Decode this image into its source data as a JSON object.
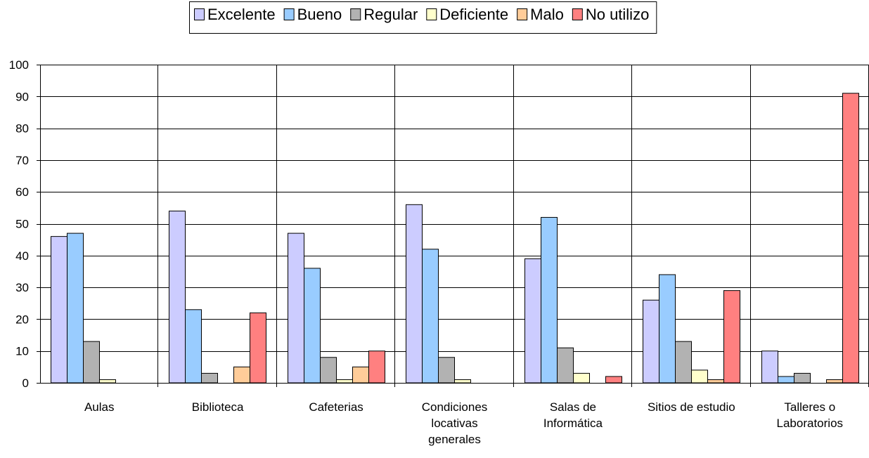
{
  "chart_data": {
    "type": "bar",
    "title": "",
    "xlabel": "",
    "ylabel": "",
    "ylim": [
      0,
      100
    ],
    "yticks": [
      0,
      10,
      20,
      30,
      40,
      50,
      60,
      70,
      80,
      90,
      100
    ],
    "grid": true,
    "legend_position": "top-center",
    "categories": [
      [
        "Aulas"
      ],
      [
        "Biblioteca"
      ],
      [
        "Cafeterias"
      ],
      [
        "Condiciones",
        "locativas",
        "generales"
      ],
      [
        "Salas de",
        "Informática"
      ],
      [
        "Sitios de estudio"
      ],
      [
        "Talleres o",
        "Laboratorios"
      ]
    ],
    "series": [
      {
        "name": "Excelente",
        "color": "#CCCCFF",
        "values": [
          46,
          54,
          47,
          56,
          39,
          26,
          10
        ]
      },
      {
        "name": "Bueno",
        "color": "#99CCFF",
        "values": [
          47,
          23,
          36,
          42,
          52,
          34,
          2
        ]
      },
      {
        "name": "Regular",
        "color": "#B2B2B2",
        "values": [
          13,
          3,
          8,
          8,
          11,
          13,
          3
        ]
      },
      {
        "name": "Deficiente",
        "color": "#FFFFCC",
        "values": [
          1,
          0,
          1,
          1,
          3,
          4,
          0
        ]
      },
      {
        "name": "Malo",
        "color": "#FFCC99",
        "values": [
          0,
          5,
          5,
          0,
          0,
          1,
          1
        ]
      },
      {
        "name": "No utilizo",
        "color": "#FF8080",
        "values": [
          0,
          22,
          10,
          0,
          2,
          29,
          91
        ]
      }
    ]
  }
}
